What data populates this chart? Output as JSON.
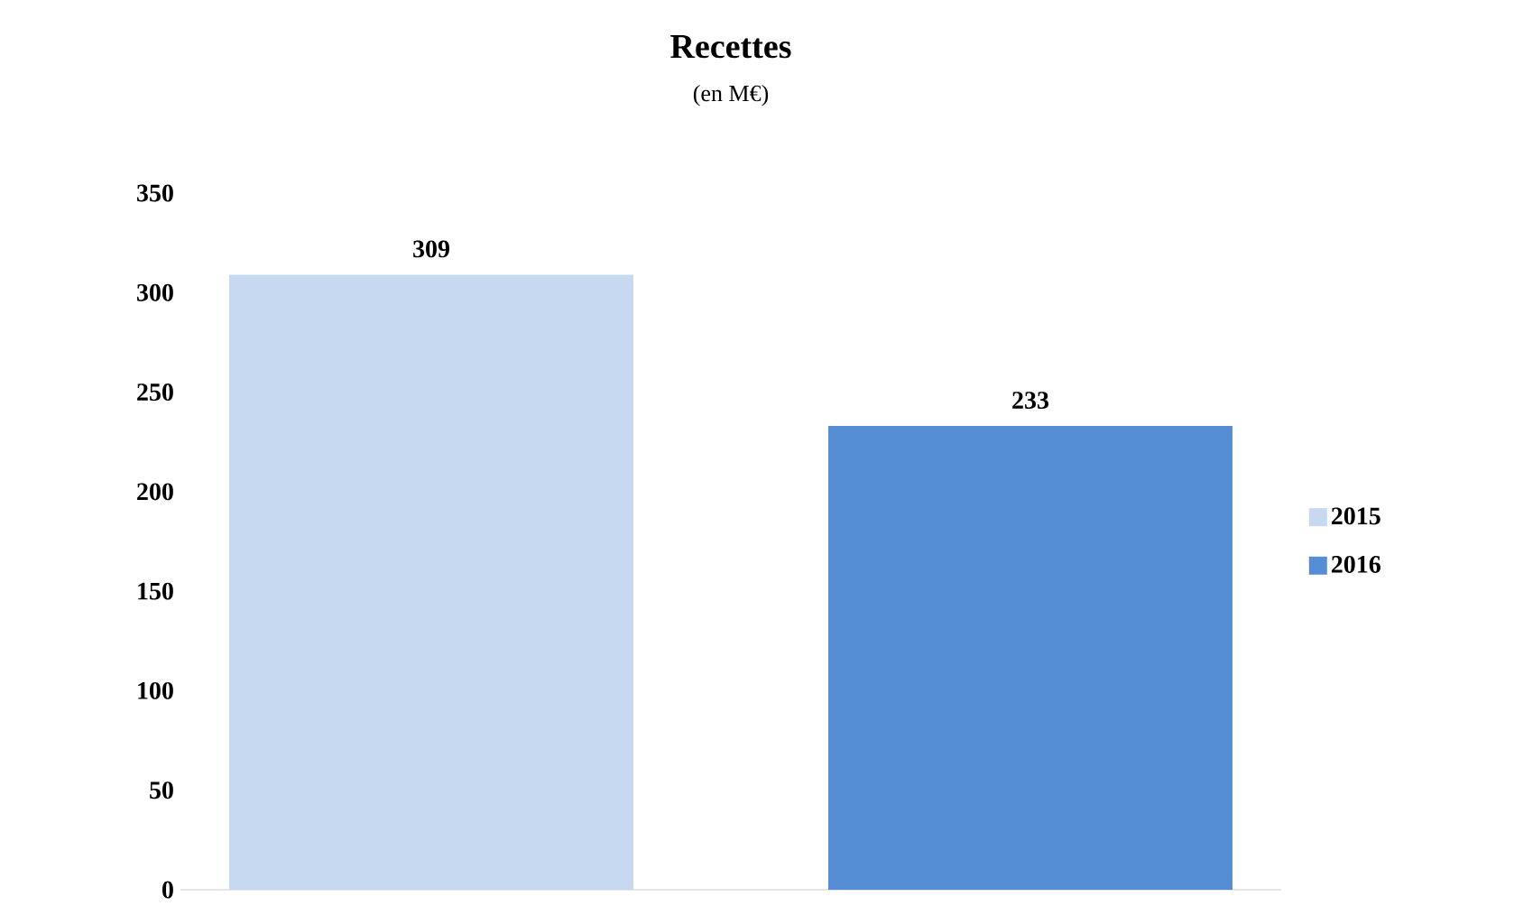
{
  "chart_data": {
    "type": "bar",
    "title": "Recettes",
    "subtitle": "(en M€)",
    "categories": [
      null
    ],
    "series": [
      {
        "name": "2015",
        "color": "#c6d9f1",
        "values": [
          309
        ]
      },
      {
        "name": "2016",
        "color": "#558ed5",
        "values": [
          233
        ]
      }
    ],
    "ylim": [
      0,
      350
    ],
    "yticks": [
      0,
      50,
      100,
      150,
      200,
      250,
      300,
      350
    ],
    "data_labels": true,
    "legend": "right",
    "grid": false
  }
}
